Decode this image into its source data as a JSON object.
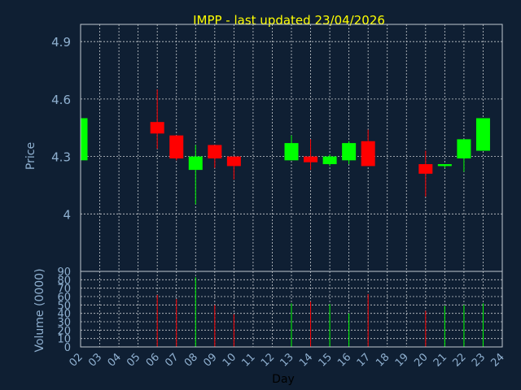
{
  "title": "IMPP - last updated 23/04/2026",
  "colors": {
    "background": "#0f1f33",
    "up": "#00ff00",
    "down": "#ff0000",
    "title": "#ffff00",
    "axis_text": "#8fb0d0",
    "grid": "#c8ccd0"
  },
  "chart_data": [
    {
      "type": "candlestick",
      "ylabel": "Price",
      "ylim": [
        3.7,
        4.99
      ],
      "yticks": [
        4,
        4.3,
        4.6,
        4.9
      ],
      "grid": true,
      "candles": [
        {
          "day": "02",
          "open": 4.28,
          "close": 4.5,
          "high": 4.51,
          "low": 4.27
        },
        {
          "day": "06",
          "open": 4.48,
          "close": 4.42,
          "high": 4.65,
          "low": 4.34
        },
        {
          "day": "07",
          "open": 4.41,
          "close": 4.29,
          "high": 4.41,
          "low": 4.28
        },
        {
          "day": "08",
          "open": 4.23,
          "close": 4.3,
          "high": 4.36,
          "low": 4.05
        },
        {
          "day": "09",
          "open": 4.36,
          "close": 4.29,
          "high": 4.36,
          "low": 4.24
        },
        {
          "day": "10",
          "open": 4.3,
          "close": 4.25,
          "high": 4.3,
          "low": 4.18
        },
        {
          "day": "13",
          "open": 4.28,
          "close": 4.37,
          "high": 4.41,
          "low": 4.28
        },
        {
          "day": "14",
          "open": 4.3,
          "close": 4.27,
          "high": 4.39,
          "low": 4.23
        },
        {
          "day": "15",
          "open": 4.26,
          "close": 4.3,
          "high": 4.31,
          "low": 4.25
        },
        {
          "day": "16",
          "open": 4.28,
          "close": 4.37,
          "high": 4.38,
          "low": 4.26
        },
        {
          "day": "17",
          "open": 4.38,
          "close": 4.25,
          "high": 4.44,
          "low": 4.25
        },
        {
          "day": "20",
          "open": 4.26,
          "close": 4.21,
          "high": 4.33,
          "low": 4.09
        },
        {
          "day": "21",
          "open": 4.25,
          "close": 4.26,
          "high": 4.26,
          "low": 4.24
        },
        {
          "day": "22",
          "open": 4.29,
          "close": 4.39,
          "high": 4.39,
          "low": 4.22
        },
        {
          "day": "23",
          "open": 4.33,
          "close": 4.5,
          "high": 4.5,
          "low": 4.33
        }
      ]
    },
    {
      "type": "bar",
      "ylabel": "Volume (0000)",
      "xlabel": "Day",
      "ylim": [
        0,
        90
      ],
      "yticks": [
        0,
        10,
        20,
        30,
        40,
        50,
        60,
        70,
        80,
        90
      ],
      "grid": true,
      "categories": [
        "02",
        "03",
        "04",
        "05",
        "06",
        "07",
        "08",
        "09",
        "10",
        "11",
        "12",
        "13",
        "14",
        "15",
        "16",
        "17",
        "18",
        "19",
        "20",
        "21",
        "22",
        "23",
        "24"
      ],
      "bars": [
        {
          "day": "06",
          "value": 62,
          "direction": "down"
        },
        {
          "day": "07",
          "value": 57,
          "direction": "down"
        },
        {
          "day": "08",
          "value": 83,
          "direction": "up"
        },
        {
          "day": "09",
          "value": 50,
          "direction": "down"
        },
        {
          "day": "10",
          "value": 39,
          "direction": "down"
        },
        {
          "day": "13",
          "value": 52,
          "direction": "up"
        },
        {
          "day": "14",
          "value": 54,
          "direction": "down"
        },
        {
          "day": "15",
          "value": 51,
          "direction": "up"
        },
        {
          "day": "16",
          "value": 40,
          "direction": "up"
        },
        {
          "day": "17",
          "value": 63,
          "direction": "down"
        },
        {
          "day": "20",
          "value": 43,
          "direction": "down"
        },
        {
          "day": "21",
          "value": 49,
          "direction": "up"
        },
        {
          "day": "22",
          "value": 50,
          "direction": "up"
        },
        {
          "day": "23",
          "value": 52,
          "direction": "up"
        }
      ]
    }
  ]
}
